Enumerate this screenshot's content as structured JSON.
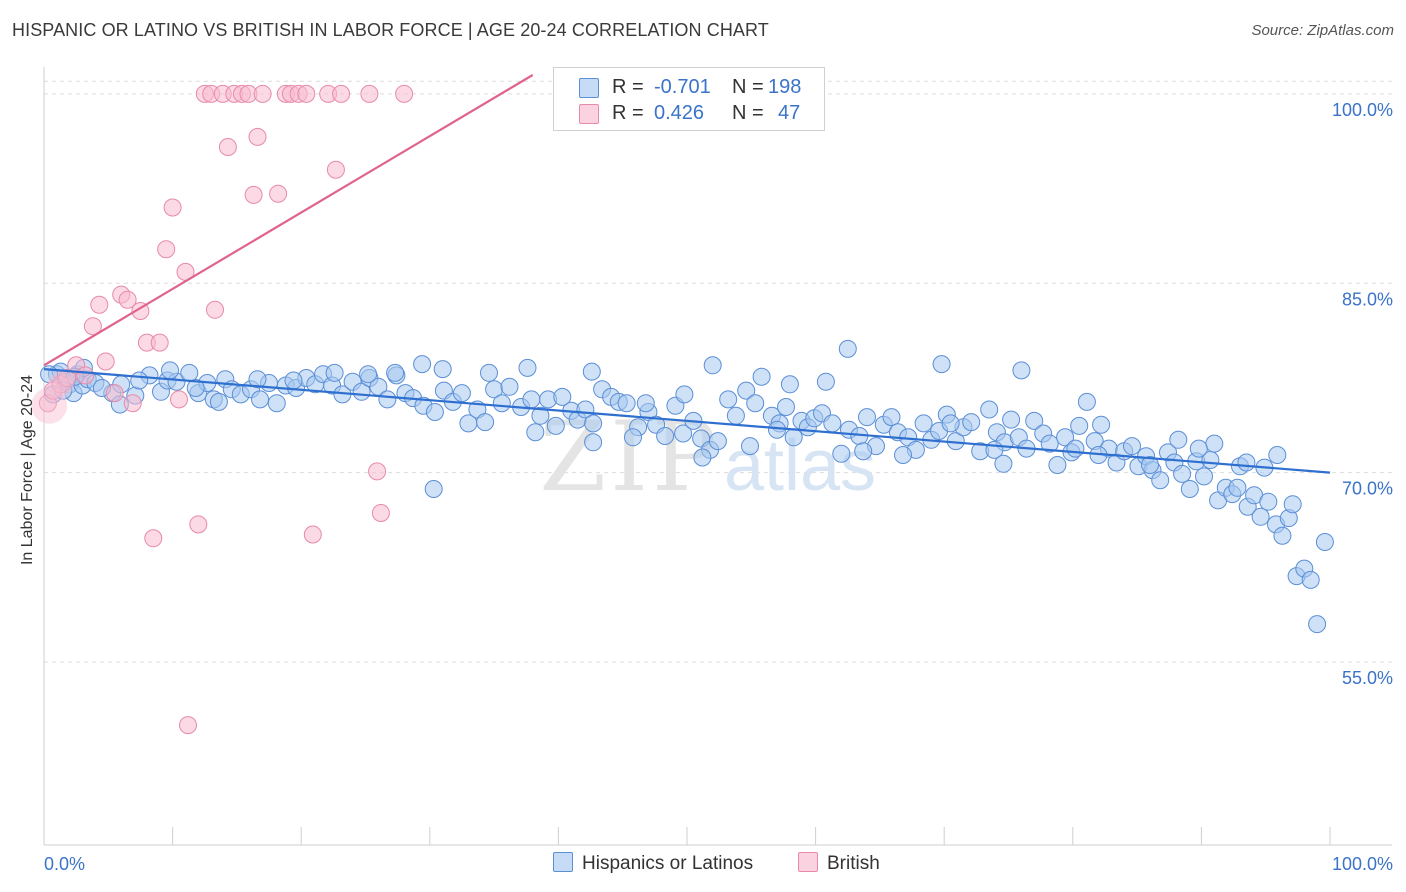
{
  "title": "HISPANIC OR LATINO VS BRITISH IN LABOR FORCE | AGE 20-24 CORRELATION CHART",
  "source": "Source: ZipAtlas.com",
  "watermark": {
    "zip": "ZIP",
    "atlas": "atlas"
  },
  "legend": {
    "rows": [
      {
        "r_label": "R =",
        "r_value": "-0.701",
        "n_label": "N =",
        "n_value": "198",
        "color": "#a8c8f0",
        "stroke": "#5b8fd6"
      },
      {
        "r_label": "R =",
        "r_value": "0.426",
        "n_label": "N =",
        "n_value": "47",
        "color": "#f8bcd0",
        "stroke": "#e88aa8"
      }
    ]
  },
  "chart_data": {
    "type": "scatter",
    "title": "HISPANIC OR LATINO VS BRITISH IN LABOR FORCE | AGE 20-24 CORRELATION CHART",
    "xlabel": "",
    "ylabel": "In Labor Force | Age 20-24",
    "xlim": [
      0,
      100
    ],
    "ylim": [
      40.5,
      101.5
    ],
    "x_tick_labels": [
      "0.0%",
      "100.0%"
    ],
    "y_ticks": [
      55,
      70,
      85,
      100
    ],
    "y_tick_labels": [
      "55.0%",
      "70.0%",
      "85.0%",
      "100.0%"
    ],
    "grid": true,
    "legend_position": "bottom-center",
    "series": [
      {
        "name": "Hispanics or Latinos",
        "color": "#a8c8f0",
        "stroke": "#5b8fd6",
        "trend": {
          "x": [
            0,
            100
          ],
          "y": [
            78.2,
            70.0
          ],
          "color": "#2e6fd0"
        },
        "points": [
          [
            0.7,
            76.2
          ],
          [
            1.0,
            77.8
          ],
          [
            1.3,
            78.0
          ],
          [
            1.7,
            77.2
          ],
          [
            2.0,
            77.0
          ],
          [
            2.3,
            76.3
          ],
          [
            2.6,
            77.8
          ],
          [
            3.0,
            76.9
          ],
          [
            3.4,
            77.4
          ],
          [
            4.0,
            77.1
          ],
          [
            5.3,
            76.3
          ],
          [
            6.0,
            77.0
          ],
          [
            7.1,
            76.1
          ],
          [
            8.2,
            77.7
          ],
          [
            9.1,
            76.4
          ],
          [
            9.6,
            77.3
          ],
          [
            10.3,
            77.2
          ],
          [
            11.3,
            77.9
          ],
          [
            12.0,
            76.3
          ],
          [
            12.7,
            77.1
          ],
          [
            13.2,
            75.8
          ],
          [
            14.1,
            77.4
          ],
          [
            14.6,
            76.6
          ],
          [
            15.3,
            76.2
          ],
          [
            16.1,
            76.6
          ],
          [
            16.8,
            75.8
          ],
          [
            17.5,
            77.1
          ],
          [
            18.1,
            75.5
          ],
          [
            18.8,
            76.9
          ],
          [
            19.6,
            76.7
          ],
          [
            20.4,
            77.5
          ],
          [
            21.1,
            77.0
          ],
          [
            21.7,
            77.8
          ],
          [
            22.4,
            76.9
          ],
          [
            23.2,
            76.2
          ],
          [
            24.0,
            77.2
          ],
          [
            24.7,
            76.4
          ],
          [
            25.3,
            77.5
          ],
          [
            26.0,
            76.8
          ],
          [
            26.7,
            75.8
          ],
          [
            27.4,
            77.7
          ],
          [
            28.1,
            76.3
          ],
          [
            28.7,
            75.9
          ],
          [
            29.5,
            75.3
          ],
          [
            30.4,
            74.8
          ],
          [
            31.1,
            76.5
          ],
          [
            31.8,
            75.6
          ],
          [
            32.5,
            76.3
          ],
          [
            33.0,
            73.9
          ],
          [
            33.7,
            75.0
          ],
          [
            34.3,
            74.0
          ],
          [
            35.0,
            76.6
          ],
          [
            35.6,
            75.5
          ],
          [
            36.2,
            76.8
          ],
          [
            37.1,
            75.2
          ],
          [
            37.9,
            75.8
          ],
          [
            38.6,
            74.5
          ],
          [
            39.2,
            75.8
          ],
          [
            39.8,
            73.7
          ],
          [
            40.3,
            76.0
          ],
          [
            41.0,
            74.9
          ],
          [
            41.5,
            74.2
          ],
          [
            42.1,
            75.0
          ],
          [
            42.7,
            73.9
          ],
          [
            43.4,
            76.6
          ],
          [
            44.1,
            76.0
          ],
          [
            44.7,
            75.6
          ],
          [
            45.3,
            75.5
          ],
          [
            46.2,
            73.6
          ],
          [
            47.0,
            74.8
          ],
          [
            47.6,
            73.8
          ],
          [
            48.3,
            72.9
          ],
          [
            49.1,
            75.3
          ],
          [
            49.7,
            73.1
          ],
          [
            50.5,
            74.1
          ],
          [
            51.1,
            72.7
          ],
          [
            51.8,
            71.8
          ],
          [
            52.4,
            72.5
          ],
          [
            53.2,
            75.8
          ],
          [
            53.8,
            74.5
          ],
          [
            54.6,
            76.5
          ],
          [
            55.3,
            75.5
          ],
          [
            55.8,
            77.6
          ],
          [
            56.6,
            74.5
          ],
          [
            57.2,
            73.9
          ],
          [
            57.7,
            75.2
          ],
          [
            58.3,
            72.8
          ],
          [
            58.9,
            74.1
          ],
          [
            59.4,
            73.6
          ],
          [
            59.9,
            74.3
          ],
          [
            60.5,
            74.7
          ],
          [
            61.3,
            73.9
          ],
          [
            62.0,
            71.5
          ],
          [
            62.6,
            73.4
          ],
          [
            63.4,
            72.9
          ],
          [
            64.0,
            74.4
          ],
          [
            64.7,
            72.1
          ],
          [
            65.3,
            73.8
          ],
          [
            65.9,
            74.4
          ],
          [
            66.4,
            73.2
          ],
          [
            67.2,
            72.8
          ],
          [
            67.8,
            71.8
          ],
          [
            68.4,
            73.9
          ],
          [
            69.0,
            72.6
          ],
          [
            69.6,
            73.3
          ],
          [
            70.2,
            74.6
          ],
          [
            70.9,
            72.5
          ],
          [
            71.5,
            73.6
          ],
          [
            72.1,
            74.0
          ],
          [
            72.8,
            71.7
          ],
          [
            73.5,
            75.0
          ],
          [
            74.1,
            73.2
          ],
          [
            74.7,
            72.4
          ],
          [
            75.2,
            74.2
          ],
          [
            75.8,
            72.8
          ],
          [
            76.4,
            71.9
          ],
          [
            77.0,
            74.1
          ],
          [
            77.7,
            73.1
          ],
          [
            78.2,
            72.3
          ],
          [
            78.8,
            70.6
          ],
          [
            79.4,
            72.8
          ],
          [
            79.9,
            71.6
          ],
          [
            80.5,
            73.7
          ],
          [
            81.1,
            75.6
          ],
          [
            81.7,
            72.5
          ],
          [
            82.2,
            73.8
          ],
          [
            82.8,
            71.9
          ],
          [
            83.4,
            70.8
          ],
          [
            84.0,
            71.7
          ],
          [
            84.6,
            72.1
          ],
          [
            85.1,
            70.5
          ],
          [
            85.7,
            71.3
          ],
          [
            86.2,
            70.2
          ],
          [
            86.8,
            69.4
          ],
          [
            87.4,
            71.6
          ],
          [
            87.9,
            70.8
          ],
          [
            88.5,
            69.9
          ],
          [
            89.1,
            68.7
          ],
          [
            89.6,
            70.9
          ],
          [
            90.2,
            69.7
          ],
          [
            90.7,
            71.0
          ],
          [
            91.3,
            67.8
          ],
          [
            91.9,
            68.8
          ],
          [
            92.4,
            68.3
          ],
          [
            93.0,
            70.5
          ],
          [
            93.6,
            67.3
          ],
          [
            94.1,
            68.2
          ],
          [
            94.6,
            66.5
          ],
          [
            95.2,
            67.7
          ],
          [
            95.8,
            65.9
          ],
          [
            96.3,
            65.0
          ],
          [
            96.8,
            66.4
          ],
          [
            97.4,
            61.8
          ],
          [
            98.0,
            62.4
          ],
          [
            98.5,
            61.5
          ],
          [
            99.0,
            58.0
          ],
          [
            99.6,
            64.5
          ],
          [
            88.2,
            72.6
          ],
          [
            91.0,
            72.3
          ],
          [
            76.0,
            78.1
          ],
          [
            69.8,
            78.6
          ],
          [
            62.5,
            79.8
          ],
          [
            60.8,
            77.2
          ],
          [
            58.0,
            77.0
          ],
          [
            52.0,
            78.5
          ],
          [
            49.8,
            76.2
          ],
          [
            46.8,
            75.5
          ],
          [
            42.6,
            78.0
          ],
          [
            37.6,
            78.3
          ],
          [
            34.6,
            77.9
          ],
          [
            31.0,
            78.2
          ],
          [
            29.4,
            78.6
          ],
          [
            27.3,
            77.9
          ],
          [
            25.2,
            77.8
          ],
          [
            22.6,
            77.9
          ],
          [
            19.4,
            77.3
          ],
          [
            16.6,
            77.4
          ],
          [
            13.6,
            75.6
          ],
          [
            11.8,
            76.7
          ],
          [
            9.8,
            78.1
          ],
          [
            7.4,
            77.3
          ],
          [
            5.9,
            75.4
          ],
          [
            4.5,
            76.7
          ],
          [
            3.1,
            78.3
          ],
          [
            2.4,
            77.6
          ],
          [
            1.5,
            76.5
          ],
          [
            0.4,
            77.8
          ],
          [
            38.2,
            73.2
          ],
          [
            30.3,
            68.7
          ],
          [
            42.7,
            72.4
          ],
          [
            45.8,
            72.8
          ],
          [
            51.2,
            71.2
          ],
          [
            54.9,
            72.1
          ],
          [
            57.0,
            73.4
          ],
          [
            63.7,
            71.7
          ],
          [
            66.8,
            71.4
          ],
          [
            70.5,
            73.9
          ],
          [
            73.9,
            71.8
          ],
          [
            74.6,
            70.7
          ],
          [
            80.2,
            71.9
          ],
          [
            82.0,
            71.4
          ],
          [
            86.0,
            70.6
          ],
          [
            89.8,
            71.9
          ],
          [
            92.8,
            68.8
          ],
          [
            95.9,
            71.4
          ],
          [
            97.1,
            67.5
          ],
          [
            93.5,
            70.8
          ],
          [
            94.9,
            70.4
          ]
        ]
      },
      {
        "name": "British",
        "color": "#f8bcd0",
        "stroke": "#e88aa8",
        "trend": {
          "x": [
            0,
            38
          ],
          "y": [
            78.5,
            101.5
          ],
          "color": "#e0628f"
        },
        "points": [
          [
            0.3,
            75.5
          ],
          [
            0.7,
            76.5
          ],
          [
            1.3,
            77.0
          ],
          [
            1.8,
            77.5
          ],
          [
            2.5,
            78.5
          ],
          [
            3.2,
            77.7
          ],
          [
            3.8,
            81.6
          ],
          [
            4.3,
            83.3
          ],
          [
            4.8,
            78.8
          ],
          [
            5.5,
            76.3
          ],
          [
            6.0,
            84.1
          ],
          [
            6.5,
            83.7
          ],
          [
            6.9,
            75.5
          ],
          [
            7.5,
            82.8
          ],
          [
            8.0,
            80.3
          ],
          [
            8.5,
            64.8
          ],
          [
            9.0,
            80.3
          ],
          [
            9.5,
            87.7
          ],
          [
            10.0,
            91.0
          ],
          [
            10.5,
            75.8
          ],
          [
            11.0,
            85.9
          ],
          [
            11.2,
            50.0
          ],
          [
            12.0,
            65.9
          ],
          [
            12.5,
            100.0
          ],
          [
            13.0,
            100.0
          ],
          [
            13.3,
            82.9
          ],
          [
            13.9,
            100.0
          ],
          [
            14.3,
            95.8
          ],
          [
            14.8,
            100.0
          ],
          [
            15.4,
            100.0
          ],
          [
            15.9,
            100.0
          ],
          [
            16.3,
            92.0
          ],
          [
            16.6,
            96.6
          ],
          [
            17.0,
            100.0
          ],
          [
            18.2,
            92.1
          ],
          [
            18.8,
            100.0
          ],
          [
            19.2,
            100.0
          ],
          [
            19.8,
            100.0
          ],
          [
            20.4,
            100.0
          ],
          [
            20.9,
            65.1
          ],
          [
            22.1,
            100.0
          ],
          [
            22.7,
            94.0
          ],
          [
            23.1,
            100.0
          ],
          [
            25.3,
            100.0
          ],
          [
            25.9,
            70.1
          ],
          [
            26.2,
            66.8
          ],
          [
            28.0,
            100.0
          ]
        ]
      }
    ]
  },
  "bottom_legend": [
    {
      "label": "Hispanics or Latinos",
      "color": "#a8c8f0",
      "stroke": "#5b8fd6"
    },
    {
      "label": "British",
      "color": "#f8bcd0",
      "stroke": "#e88aa8"
    }
  ]
}
